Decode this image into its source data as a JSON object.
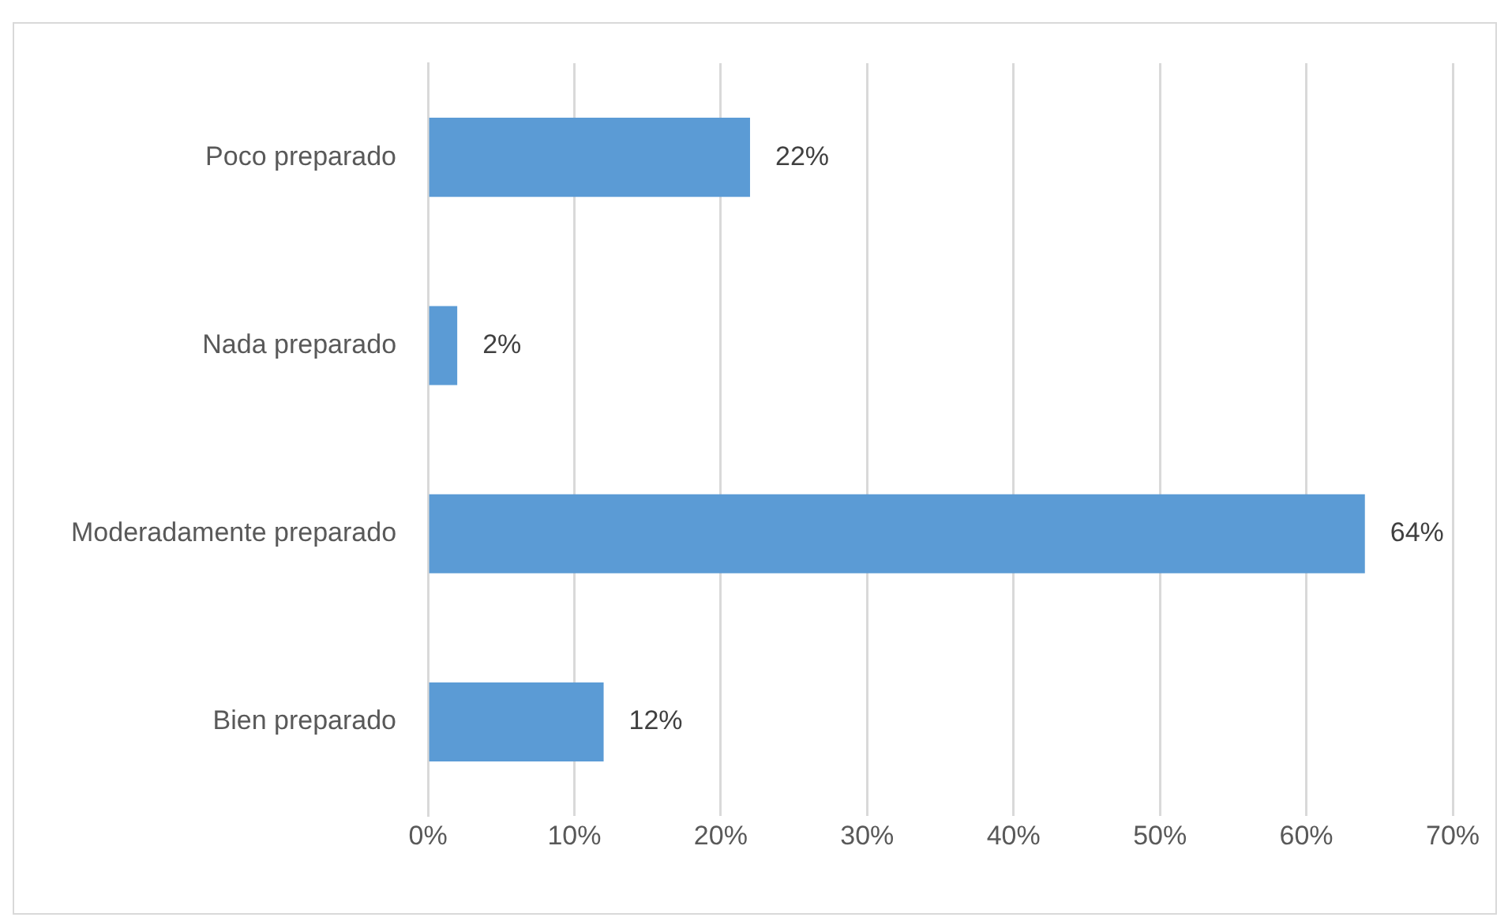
{
  "chart_data": {
    "type": "bar",
    "orientation": "horizontal",
    "categories": [
      "Poco preparado",
      "Nada preparado",
      "Moderadamente preparado",
      "Bien preparado"
    ],
    "values": [
      22,
      2,
      64,
      12
    ],
    "value_labels": [
      "22%",
      "2%",
      "64%",
      "12%"
    ],
    "color": "#5b9bd5",
    "xlim": [
      0,
      70
    ],
    "xticks": [
      {
        "value": 0,
        "label": "0%"
      },
      {
        "value": 10,
        "label": "10%"
      },
      {
        "value": 20,
        "label": "20%"
      },
      {
        "value": 30,
        "label": "30%"
      },
      {
        "value": 40,
        "label": "40%"
      },
      {
        "value": 50,
        "label": "50%"
      },
      {
        "value": 60,
        "label": "60%"
      },
      {
        "value": 70,
        "label": "70%"
      }
    ],
    "grid": "x"
  }
}
